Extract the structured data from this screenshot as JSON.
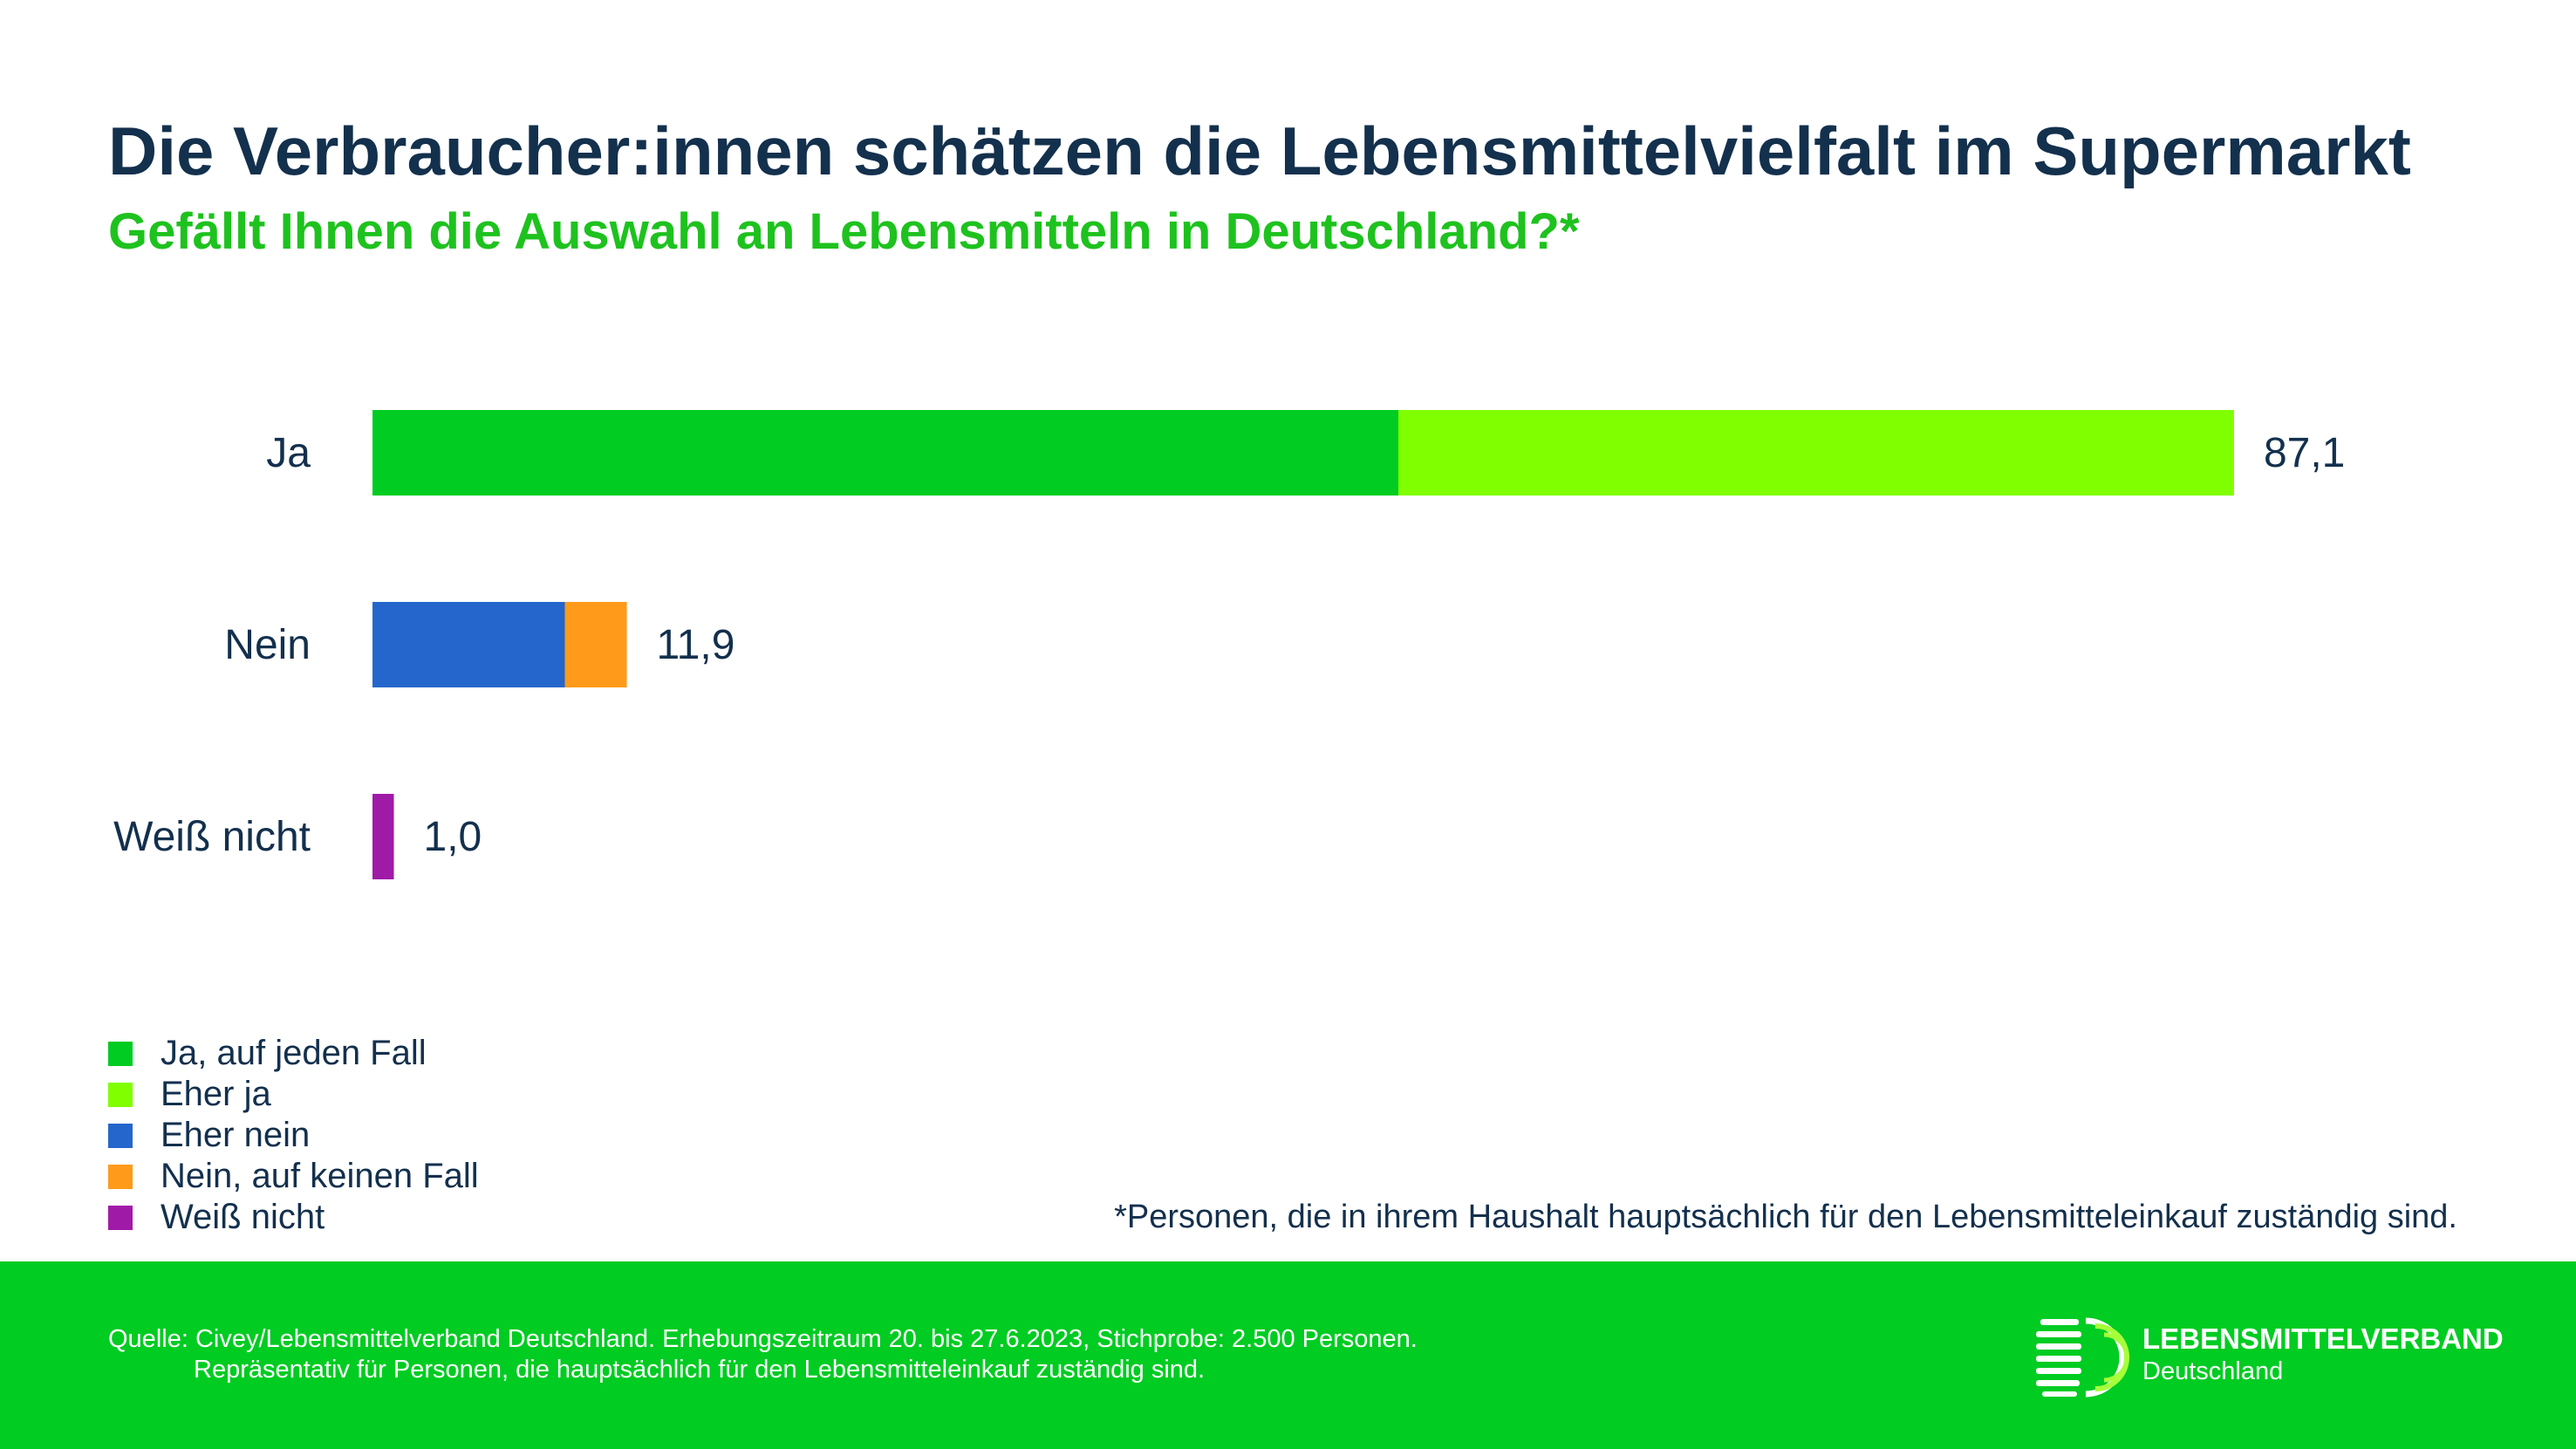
{
  "header": {
    "title": "Die Verbraucher:innen schätzen die Lebensmittelvielfalt im Supermarkt",
    "subtitle": "Gefällt Ihnen die Auswahl an Lebensmitteln in Deutschland?*"
  },
  "chart_data": {
    "type": "bar",
    "orientation": "horizontal",
    "stacked": true,
    "categories": [
      "Ja",
      "Nein",
      "Weiß nicht"
    ],
    "totals": [
      "87,1",
      "11,9",
      "1,0"
    ],
    "xlim": [
      0,
      100
    ],
    "grid": false,
    "legend_position": "bottom-left",
    "series": [
      {
        "name": "Ja, auf jeden Fall",
        "color": "#00cc22",
        "values": [
          48.0,
          0,
          0
        ]
      },
      {
        "name": "Eher ja",
        "color": "#80ff00",
        "values": [
          39.1,
          0,
          0
        ]
      },
      {
        "name": "Eher nein",
        "color": "#2566cc",
        "values": [
          0,
          9.0,
          0
        ]
      },
      {
        "name": "Nein, auf keinen Fall",
        "color": "#ff9a1a",
        "values": [
          0,
          2.9,
          0
        ]
      },
      {
        "name": "Weiß nicht",
        "color": "#a01aa8",
        "values": [
          0,
          0,
          1.0
        ]
      }
    ]
  },
  "footnote": "*Personen, die in ihrem Haushalt hauptsächlich für den Lebensmitteleinkauf zuständig sind.",
  "footer": {
    "source_line1": "Quelle: Civey/Lebensmittelverband Deutschland. Erhebungszeitraum 20. bis 27.6.2023, Stichprobe: 2.500 Personen.",
    "source_line2": "Repräsentativ für Personen, die hauptsächlich für den Lebensmitteleinkauf zuständig sind.",
    "logo_name": "LEBENSMITTELVERBAND",
    "logo_sub": "Deutschland"
  }
}
